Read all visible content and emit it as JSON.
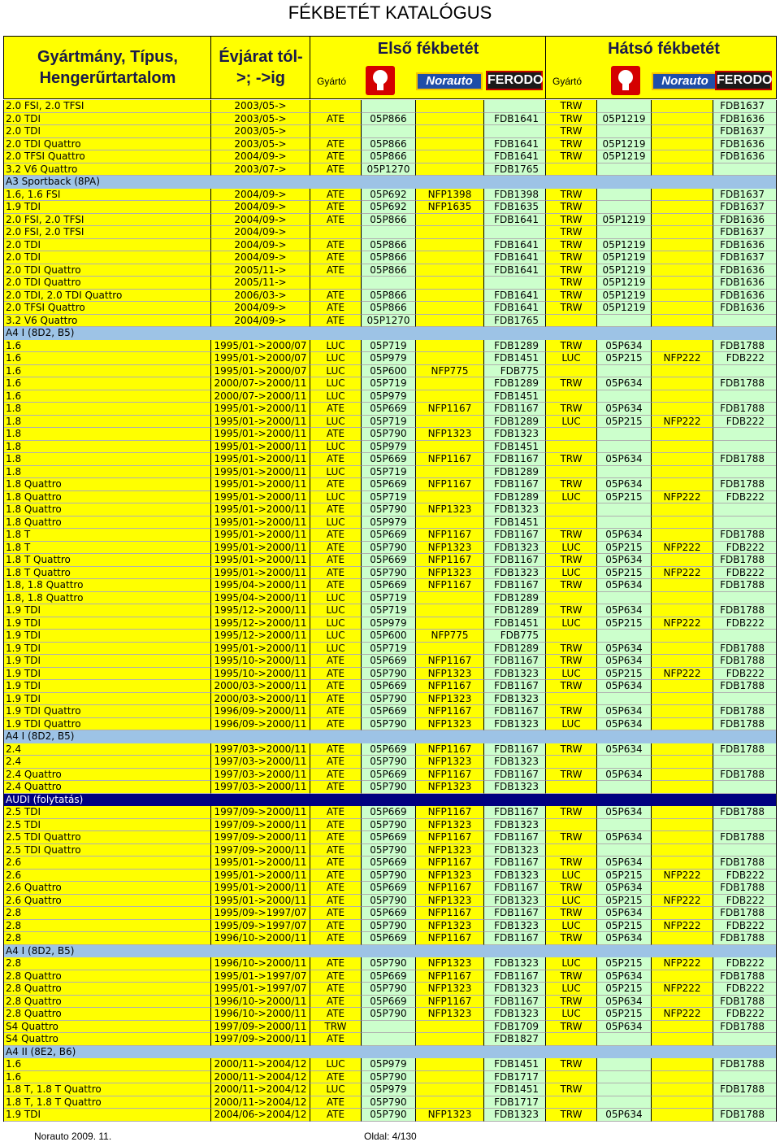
{
  "page": {
    "title": "FÉKBETÉT KATALÓGUS"
  },
  "header": {
    "model_label": "Gyártmány, Típus, Hengerűrtartalom",
    "year_label": "Évjárat tól- >; ->ig",
    "front_label": "Első fékbetét",
    "rear_label": "Hátsó fékbetét",
    "maker_label": "Gyártó",
    "logos": [
      "Brembo",
      "Norauto",
      "FERODO"
    ]
  },
  "rows": [
    {
      "t": "d",
      "c": [
        "2.0 FSI, 2.0 TFSI",
        "2003/05->",
        "",
        "",
        "",
        "",
        "TRW",
        "",
        "",
        "FDB1637"
      ]
    },
    {
      "t": "d",
      "c": [
        "2.0 TDI",
        "2003/05->",
        "ATE",
        "05P866",
        "",
        "FDB1641",
        "TRW",
        "05P1219",
        "",
        "FDB1636"
      ]
    },
    {
      "t": "d",
      "c": [
        "2.0 TDI",
        "2003/05->",
        "",
        "",
        "",
        "",
        "TRW",
        "",
        "",
        "FDB1637"
      ]
    },
    {
      "t": "d",
      "c": [
        "2.0 TDI Quattro",
        "2003/05->",
        "ATE",
        "05P866",
        "",
        "FDB1641",
        "TRW",
        "05P1219",
        "",
        "FDB1636"
      ]
    },
    {
      "t": "d",
      "c": [
        "2.0 TFSI Quattro",
        "2004/09->",
        "ATE",
        "05P866",
        "",
        "FDB1641",
        "TRW",
        "05P1219",
        "",
        "FDB1636"
      ]
    },
    {
      "t": "d",
      "c": [
        "3.2 V6 Quattro",
        "2003/07->",
        "ATE",
        "05P1270",
        "",
        "FDB1765",
        "",
        "",
        "",
        ""
      ]
    },
    {
      "t": "s",
      "c": [
        "A3 Sportback (8PA)"
      ]
    },
    {
      "t": "d",
      "c": [
        "1.6, 1.6 FSI",
        "2004/09->",
        "ATE",
        "05P692",
        "NFP1398",
        "FDB1398",
        "TRW",
        "",
        "",
        "FDB1637"
      ]
    },
    {
      "t": "d",
      "c": [
        "1.9 TDI",
        "2004/09->",
        "ATE",
        "05P692",
        "NFP1635",
        "FDB1635",
        "TRW",
        "",
        "",
        "FDB1637"
      ]
    },
    {
      "t": "d",
      "c": [
        "2.0 FSI, 2.0 TFSI",
        "2004/09->",
        "ATE",
        "05P866",
        "",
        "FDB1641",
        "TRW",
        "05P1219",
        "",
        "FDB1636"
      ]
    },
    {
      "t": "d",
      "c": [
        "2.0 FSI, 2.0 TFSI",
        "2004/09->",
        "",
        "",
        "",
        "",
        "TRW",
        "",
        "",
        "FDB1637"
      ]
    },
    {
      "t": "d",
      "c": [
        "2.0 TDI",
        "2004/09->",
        "ATE",
        "05P866",
        "",
        "FDB1641",
        "TRW",
        "05P1219",
        "",
        "FDB1636"
      ]
    },
    {
      "t": "d",
      "c": [
        "2.0 TDI",
        "2004/09->",
        "ATE",
        "05P866",
        "",
        "FDB1641",
        "TRW",
        "05P1219",
        "",
        "FDB1637"
      ]
    },
    {
      "t": "d",
      "c": [
        "2.0 TDI Quattro",
        "2005/11->",
        "ATE",
        "05P866",
        "",
        "FDB1641",
        "TRW",
        "05P1219",
        "",
        "FDB1636"
      ]
    },
    {
      "t": "d",
      "c": [
        "2.0 TDI Quattro",
        "2005/11->",
        "",
        "",
        "",
        "",
        "TRW",
        "05P1219",
        "",
        "FDB1636"
      ]
    },
    {
      "t": "d",
      "c": [
        "2.0 TDI, 2.0 TDI Quattro",
        "2006/03->",
        "ATE",
        "05P866",
        "",
        "FDB1641",
        "TRW",
        "05P1219",
        "",
        "FDB1636"
      ]
    },
    {
      "t": "d",
      "c": [
        "2.0 TFSI Quattro",
        "2004/09->",
        "ATE",
        "05P866",
        "",
        "FDB1641",
        "TRW",
        "05P1219",
        "",
        "FDB1636"
      ]
    },
    {
      "t": "d",
      "c": [
        "3.2 V6 Quattro",
        "2004/09->",
        "ATE",
        "05P1270",
        "",
        "FDB1765",
        "",
        "",
        "",
        ""
      ]
    },
    {
      "t": "s",
      "c": [
        "A4 I (8D2, B5)"
      ]
    },
    {
      "t": "d",
      "c": [
        "1.6",
        "1995/01->2000/07",
        "LUC",
        "05P719",
        "",
        "FDB1289",
        "TRW",
        "05P634",
        "",
        "FDB1788"
      ]
    },
    {
      "t": "d",
      "c": [
        "1.6",
        "1995/01->2000/07",
        "LUC",
        "05P979",
        "",
        "FDB1451",
        "LUC",
        "05P215",
        "NFP222",
        "FDB222"
      ]
    },
    {
      "t": "d",
      "c": [
        "1.6",
        "1995/01->2000/07",
        "LUC",
        "05P600",
        "NFP775",
        "FDB775",
        "",
        "",
        "",
        ""
      ]
    },
    {
      "t": "d",
      "c": [
        "1.6",
        "2000/07->2000/11",
        "LUC",
        "05P719",
        "",
        "FDB1289",
        "TRW",
        "05P634",
        "",
        "FDB1788"
      ]
    },
    {
      "t": "d",
      "c": [
        "1.6",
        "2000/07->2000/11",
        "LUC",
        "05P979",
        "",
        "FDB1451",
        "",
        "",
        "",
        ""
      ]
    },
    {
      "t": "d",
      "c": [
        "1.8",
        "1995/01->2000/11",
        "ATE",
        "05P669",
        "NFP1167",
        "FDB1167",
        "TRW",
        "05P634",
        "",
        "FDB1788"
      ]
    },
    {
      "t": "d",
      "c": [
        "1.8",
        "1995/01->2000/11",
        "LUC",
        "05P719",
        "",
        "FDB1289",
        "LUC",
        "05P215",
        "NFP222",
        "FDB222"
      ]
    },
    {
      "t": "d",
      "c": [
        "1.8",
        "1995/01->2000/11",
        "ATE",
        "05P790",
        "NFP1323",
        "FDB1323",
        "",
        "",
        "",
        ""
      ]
    },
    {
      "t": "d",
      "c": [
        "1.8",
        "1995/01->2000/11",
        "LUC",
        "05P979",
        "",
        "FDB1451",
        "",
        "",
        "",
        ""
      ]
    },
    {
      "t": "d",
      "c": [
        "1.8",
        "1995/01->2000/11",
        "ATE",
        "05P669",
        "NFP1167",
        "FDB1167",
        "TRW",
        "05P634",
        "",
        "FDB1788"
      ]
    },
    {
      "t": "d",
      "c": [
        "1.8",
        "1995/01->2000/11",
        "LUC",
        "05P719",
        "",
        "FDB1289",
        "",
        "",
        "",
        ""
      ]
    },
    {
      "t": "d",
      "c": [
        "1.8 Quattro",
        "1995/01->2000/11",
        "ATE",
        "05P669",
        "NFP1167",
        "FDB1167",
        "TRW",
        "05P634",
        "",
        "FDB1788"
      ]
    },
    {
      "t": "d",
      "c": [
        "1.8 Quattro",
        "1995/01->2000/11",
        "LUC",
        "05P719",
        "",
        "FDB1289",
        "LUC",
        "05P215",
        "NFP222",
        "FDB222"
      ]
    },
    {
      "t": "d",
      "c": [
        "1.8 Quattro",
        "1995/01->2000/11",
        "ATE",
        "05P790",
        "NFP1323",
        "FDB1323",
        "",
        "",
        "",
        ""
      ]
    },
    {
      "t": "d",
      "c": [
        "1.8 Quattro",
        "1995/01->2000/11",
        "LUC",
        "05P979",
        "",
        "FDB1451",
        "",
        "",
        "",
        ""
      ]
    },
    {
      "t": "d",
      "c": [
        "1.8 T",
        "1995/01->2000/11",
        "ATE",
        "05P669",
        "NFP1167",
        "FDB1167",
        "TRW",
        "05P634",
        "",
        "FDB1788"
      ]
    },
    {
      "t": "d",
      "c": [
        "1.8 T",
        "1995/01->2000/11",
        "ATE",
        "05P790",
        "NFP1323",
        "FDB1323",
        "LUC",
        "05P215",
        "NFP222",
        "FDB222"
      ]
    },
    {
      "t": "d",
      "c": [
        "1.8 T Quattro",
        "1995/01->2000/11",
        "ATE",
        "05P669",
        "NFP1167",
        "FDB1167",
        "TRW",
        "05P634",
        "",
        "FDB1788"
      ]
    },
    {
      "t": "d",
      "c": [
        "1.8 T Quattro",
        "1995/01->2000/11",
        "ATE",
        "05P790",
        "NFP1323",
        "FDB1323",
        "LUC",
        "05P215",
        "NFP222",
        "FDB222"
      ]
    },
    {
      "t": "d",
      "c": [
        "1.8, 1.8 Quattro",
        "1995/04->2000/11",
        "ATE",
        "05P669",
        "NFP1167",
        "FDB1167",
        "TRW",
        "05P634",
        "",
        "FDB1788"
      ]
    },
    {
      "t": "d",
      "c": [
        "1.8, 1.8 Quattro",
        "1995/04->2000/11",
        "LUC",
        "05P719",
        "",
        "FDB1289",
        "",
        "",
        "",
        ""
      ]
    },
    {
      "t": "d",
      "c": [
        "1.9 TDI",
        "1995/12->2000/11",
        "LUC",
        "05P719",
        "",
        "FDB1289",
        "TRW",
        "05P634",
        "",
        "FDB1788"
      ]
    },
    {
      "t": "d",
      "c": [
        "1.9 TDI",
        "1995/12->2000/11",
        "LUC",
        "05P979",
        "",
        "FDB1451",
        "LUC",
        "05P215",
        "NFP222",
        "FDB222"
      ]
    },
    {
      "t": "d",
      "c": [
        "1.9 TDI",
        "1995/12->2000/11",
        "LUC",
        "05P600",
        "NFP775",
        "FDB775",
        "",
        "",
        "",
        ""
      ]
    },
    {
      "t": "d",
      "c": [
        "1.9 TDI",
        "1995/01->2000/11",
        "LUC",
        "05P719",
        "",
        "FDB1289",
        "TRW",
        "05P634",
        "",
        "FDB1788"
      ]
    },
    {
      "t": "d",
      "c": [
        "1.9 TDI",
        "1995/10->2000/11",
        "ATE",
        "05P669",
        "NFP1167",
        "FDB1167",
        "TRW",
        "05P634",
        "",
        "FDB1788"
      ]
    },
    {
      "t": "d",
      "c": [
        "1.9 TDI",
        "1995/10->2000/11",
        "ATE",
        "05P790",
        "NFP1323",
        "FDB1323",
        "LUC",
        "05P215",
        "NFP222",
        "FDB222"
      ]
    },
    {
      "t": "d",
      "c": [
        "1.9 TDI",
        "2000/03->2000/11",
        "ATE",
        "05P669",
        "NFP1167",
        "FDB1167",
        "TRW",
        "05P634",
        "",
        "FDB1788"
      ]
    },
    {
      "t": "d",
      "c": [
        "1.9 TDI",
        "2000/03->2000/11",
        "ATE",
        "05P790",
        "NFP1323",
        "FDB1323",
        "",
        "",
        "",
        ""
      ]
    },
    {
      "t": "d",
      "c": [
        "1.9 TDI Quattro",
        "1996/09->2000/11",
        "ATE",
        "05P669",
        "NFP1167",
        "FDB1167",
        "TRW",
        "05P634",
        "",
        "FDB1788"
      ]
    },
    {
      "t": "d",
      "c": [
        "1.9 TDI Quattro",
        "1996/09->2000/11",
        "ATE",
        "05P790",
        "NFP1323",
        "FDB1323",
        "LUC",
        "05P634",
        "",
        "FDB1788"
      ]
    },
    {
      "t": "s",
      "c": [
        "A4 I (8D2, B5)"
      ]
    },
    {
      "t": "d",
      "c": [
        "2.4",
        "1997/03->2000/11",
        "ATE",
        "05P669",
        "NFP1167",
        "FDB1167",
        "TRW",
        "05P634",
        "",
        "FDB1788"
      ]
    },
    {
      "t": "d",
      "c": [
        "2.4",
        "1997/03->2000/11",
        "ATE",
        "05P790",
        "NFP1323",
        "FDB1323",
        "",
        "",
        "",
        ""
      ]
    },
    {
      "t": "d",
      "c": [
        "2.4 Quattro",
        "1997/03->2000/11",
        "ATE",
        "05P669",
        "NFP1167",
        "FDB1167",
        "TRW",
        "05P634",
        "",
        "FDB1788"
      ]
    },
    {
      "t": "d",
      "c": [
        "2.4 Quattro",
        "1997/03->2000/11",
        "ATE",
        "05P790",
        "NFP1323",
        "FDB1323",
        "",
        "",
        "",
        ""
      ]
    },
    {
      "t": "sd",
      "c": [
        "AUDI (folytatás)"
      ]
    },
    {
      "t": "d",
      "c": [
        "2.5 TDI",
        "1997/09->2000/11",
        "ATE",
        "05P669",
        "NFP1167",
        "FDB1167",
        "TRW",
        "05P634",
        "",
        "FDB1788"
      ]
    },
    {
      "t": "d",
      "c": [
        "2.5 TDI",
        "1997/09->2000/11",
        "ATE",
        "05P790",
        "NFP1323",
        "FDB1323",
        "",
        "",
        "",
        ""
      ]
    },
    {
      "t": "d",
      "c": [
        "2.5 TDI Quattro",
        "1997/09->2000/11",
        "ATE",
        "05P669",
        "NFP1167",
        "FDB1167",
        "TRW",
        "05P634",
        "",
        "FDB1788"
      ]
    },
    {
      "t": "d",
      "c": [
        "2.5 TDI Quattro",
        "1997/09->2000/11",
        "ATE",
        "05P790",
        "NFP1323",
        "FDB1323",
        "",
        "",
        "",
        ""
      ]
    },
    {
      "t": "d",
      "c": [
        "2.6",
        "1995/01->2000/11",
        "ATE",
        "05P669",
        "NFP1167",
        "FDB1167",
        "TRW",
        "05P634",
        "",
        "FDB1788"
      ]
    },
    {
      "t": "d",
      "c": [
        "2.6",
        "1995/01->2000/11",
        "ATE",
        "05P790",
        "NFP1323",
        "FDB1323",
        "LUC",
        "05P215",
        "NFP222",
        "FDB222"
      ]
    },
    {
      "t": "d",
      "c": [
        "2.6 Quattro",
        "1995/01->2000/11",
        "ATE",
        "05P669",
        "NFP1167",
        "FDB1167",
        "TRW",
        "05P634",
        "",
        "FDB1788"
      ]
    },
    {
      "t": "d",
      "c": [
        "2.6 Quattro",
        "1995/01->2000/11",
        "ATE",
        "05P790",
        "NFP1323",
        "FDB1323",
        "LUC",
        "05P215",
        "NFP222",
        "FDB222"
      ]
    },
    {
      "t": "d",
      "c": [
        "2.8",
        "1995/09->1997/07",
        "ATE",
        "05P669",
        "NFP1167",
        "FDB1167",
        "TRW",
        "05P634",
        "",
        "FDB1788"
      ]
    },
    {
      "t": "d",
      "c": [
        "2.8",
        "1995/09->1997/07",
        "ATE",
        "05P790",
        "NFP1323",
        "FDB1323",
        "LUC",
        "05P215",
        "NFP222",
        "FDB222"
      ]
    },
    {
      "t": "d",
      "c": [
        "2.8",
        "1996/10->2000/11",
        "ATE",
        "05P669",
        "NFP1167",
        "FDB1167",
        "TRW",
        "05P634",
        "",
        "FDB1788"
      ]
    },
    {
      "t": "s",
      "c": [
        "A4 I (8D2, B5)"
      ]
    },
    {
      "t": "d",
      "c": [
        "2.8",
        "1996/10->2000/11",
        "ATE",
        "05P790",
        "NFP1323",
        "FDB1323",
        "LUC",
        "05P215",
        "NFP222",
        "FDB222"
      ]
    },
    {
      "t": "d",
      "c": [
        "2.8 Quattro",
        "1995/01->1997/07",
        "ATE",
        "05P669",
        "NFP1167",
        "FDB1167",
        "TRW",
        "05P634",
        "",
        "FDB1788"
      ]
    },
    {
      "t": "d",
      "c": [
        "2.8 Quattro",
        "1995/01->1997/07",
        "ATE",
        "05P790",
        "NFP1323",
        "FDB1323",
        "LUC",
        "05P215",
        "NFP222",
        "FDB222"
      ]
    },
    {
      "t": "d",
      "c": [
        "2.8 Quattro",
        "1996/10->2000/11",
        "ATE",
        "05P669",
        "NFP1167",
        "FDB1167",
        "TRW",
        "05P634",
        "",
        "FDB1788"
      ]
    },
    {
      "t": "d",
      "c": [
        "2.8 Quattro",
        "1996/10->2000/11",
        "ATE",
        "05P790",
        "NFP1323",
        "FDB1323",
        "LUC",
        "05P215",
        "NFP222",
        "FDB222"
      ]
    },
    {
      "t": "d",
      "c": [
        "S4 Quattro",
        "1997/09->2000/11",
        "TRW",
        "",
        "",
        "FDB1709",
        "TRW",
        "05P634",
        "",
        "FDB1788"
      ]
    },
    {
      "t": "d",
      "c": [
        "S4 Quattro",
        "1997/09->2000/11",
        "ATE",
        "",
        "",
        "FDB1827",
        "",
        "",
        "",
        ""
      ]
    },
    {
      "t": "s",
      "c": [
        "A4 II (8E2, B6)"
      ]
    },
    {
      "t": "d",
      "c": [
        "1.6",
        "2000/11->2004/12",
        "LUC",
        "05P979",
        "",
        "FDB1451",
        "TRW",
        "",
        "",
        "FDB1788"
      ]
    },
    {
      "t": "d",
      "c": [
        "1.6",
        "2000/11->2004/12",
        "ATE",
        "05P790",
        "",
        "FDB1717",
        "",
        "",
        "",
        ""
      ]
    },
    {
      "t": "d",
      "c": [
        "1.8 T, 1.8 T Quattro",
        "2000/11->2004/12",
        "LUC",
        "05P979",
        "",
        "FDB1451",
        "TRW",
        "",
        "",
        "FDB1788"
      ]
    },
    {
      "t": "d",
      "c": [
        "1.8 T, 1.8 T Quattro",
        "2000/11->2004/12",
        "ATE",
        "05P790",
        "",
        "FDB1717",
        "",
        "",
        "",
        ""
      ]
    },
    {
      "t": "d",
      "c": [
        "1.9 TDI",
        "2004/06->2004/12",
        "ATE",
        "05P790",
        "NFP1323",
        "FDB1323",
        "TRW",
        "05P634",
        "",
        "FDB1788"
      ]
    }
  ],
  "footer": {
    "left": "Norauto 2009. 11.",
    "page": "Oldal: 4/130"
  }
}
